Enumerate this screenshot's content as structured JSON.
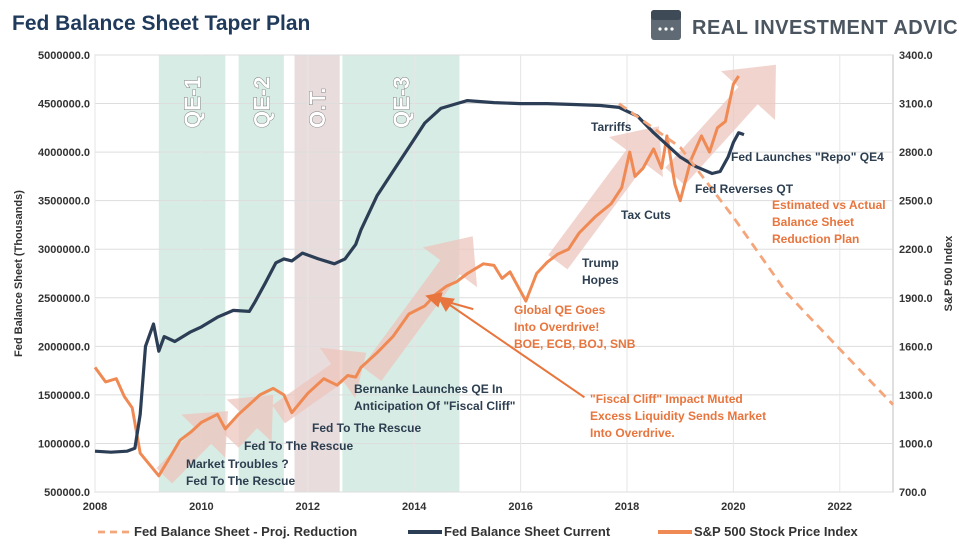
{
  "chart_data": {
    "type": "line",
    "title": "Fed Balance Sheet Taper Plan",
    "brand": "REAL INVESTMENT ADVICE",
    "x_axis": {
      "range": [
        2008,
        2023
      ],
      "ticks": [
        2008,
        2010,
        2012,
        2014,
        2016,
        2018,
        2020,
        2022
      ],
      "tick_labels": [
        "2008",
        "2010",
        "2012",
        "2014",
        "2016",
        "2018",
        "2020",
        "2022"
      ]
    },
    "y_left": {
      "label": "Fed Balance Sheet (Thousands)",
      "range": [
        500000,
        5000000
      ],
      "ticks": [
        500000,
        1000000,
        1500000,
        2000000,
        2500000,
        3000000,
        3500000,
        4000000,
        4500000,
        5000000
      ],
      "tick_labels": [
        "500000.0",
        "1000000.0",
        "1500000.0",
        "2000000.0",
        "2500000.0",
        "3000000.0",
        "3500000.0",
        "4000000.0",
        "4500000.0",
        "5000000.0"
      ]
    },
    "y_right": {
      "label": "S&P 500 Index",
      "range": [
        700,
        3400
      ],
      "ticks": [
        700,
        1000,
        1300,
        1600,
        1900,
        2200,
        2500,
        2800,
        3100,
        3400
      ],
      "tick_labels": [
        "700.0",
        "1000.0",
        "1300.0",
        "1600.0",
        "1900.0",
        "2200.0",
        "2500.0",
        "2800.0",
        "3100.0",
        "3400.0"
      ]
    },
    "grid": true,
    "legend_position": "bottom",
    "colors": {
      "fed": "#2c3e55",
      "spx": "#f08a54",
      "projection": "#f4a57a",
      "qe_band": "#d7ece4",
      "qt_band": "#e9dcdc",
      "arrow": "#ecc5bd"
    },
    "bands": [
      {
        "label": "QE-1",
        "start": 2009.2,
        "end": 2010.45,
        "kind": "qe"
      },
      {
        "label": "QE-2",
        "start": 2010.7,
        "end": 2011.55,
        "kind": "qe"
      },
      {
        "label": "O.T.",
        "start": 2011.75,
        "end": 2012.6,
        "kind": "qt"
      },
      {
        "label": "QE-3",
        "start": 2012.65,
        "end": 2014.85,
        "kind": "qe"
      }
    ],
    "series": [
      {
        "name": "Fed Balance Sheet - Proj. Reduction",
        "axis": "left",
        "style": "dashed",
        "x": [
          2017.85,
          2019.0,
          2020.0,
          2021.0,
          2022.0,
          2023.0
        ],
        "y": [
          4500000,
          4050000,
          3330000,
          2550000,
          1970000,
          1400000
        ]
      },
      {
        "name": "Fed Balance Sheet Current",
        "axis": "left",
        "style": "solid",
        "x": [
          2008.0,
          2008.3,
          2008.6,
          2008.75,
          2008.85,
          2008.95,
          2009.1,
          2009.2,
          2009.3,
          2009.5,
          2009.8,
          2010.0,
          2010.3,
          2010.6,
          2010.9,
          2011.0,
          2011.2,
          2011.4,
          2011.55,
          2011.7,
          2011.9,
          2012.2,
          2012.5,
          2012.7,
          2012.9,
          2013.0,
          2013.3,
          2013.6,
          2013.9,
          2014.2,
          2014.5,
          2014.8,
          2015.0,
          2015.5,
          2016.0,
          2016.5,
          2017.0,
          2017.5,
          2017.85,
          2018.2,
          2018.5,
          2018.8,
          2019.0,
          2019.3,
          2019.6,
          2019.75,
          2019.9,
          2020.0,
          2020.1,
          2020.2
        ],
        "y": [
          920000,
          910000,
          920000,
          950000,
          1300000,
          2000000,
          2230000,
          1950000,
          2100000,
          2050000,
          2150000,
          2200000,
          2300000,
          2370000,
          2360000,
          2450000,
          2650000,
          2860000,
          2900000,
          2880000,
          2960000,
          2900000,
          2850000,
          2900000,
          3050000,
          3200000,
          3550000,
          3800000,
          4050000,
          4300000,
          4450000,
          4500000,
          4530000,
          4510000,
          4500000,
          4500000,
          4490000,
          4480000,
          4460000,
          4370000,
          4200000,
          4050000,
          3950000,
          3850000,
          3780000,
          3800000,
          3950000,
          4100000,
          4200000,
          4180000
        ]
      },
      {
        "name": "S&P 500 Stock Price Index",
        "axis": "right",
        "style": "solid",
        "x": [
          2008.0,
          2008.2,
          2008.4,
          2008.55,
          2008.7,
          2008.85,
          2009.0,
          2009.2,
          2009.4,
          2009.6,
          2009.8,
          2010.0,
          2010.3,
          2010.45,
          2010.7,
          2010.9,
          2011.1,
          2011.35,
          2011.55,
          2011.7,
          2011.85,
          2012.0,
          2012.3,
          2012.55,
          2012.75,
          2012.9,
          2013.0,
          2013.3,
          2013.6,
          2013.9,
          2014.2,
          2014.4,
          2014.6,
          2014.8,
          2015.0,
          2015.3,
          2015.5,
          2015.65,
          2015.8,
          2016.0,
          2016.1,
          2016.3,
          2016.5,
          2016.7,
          2016.9,
          2017.1,
          2017.4,
          2017.7,
          2017.9,
          2018.05,
          2018.15,
          2018.3,
          2018.5,
          2018.65,
          2018.75,
          2018.9,
          2019.0,
          2019.2,
          2019.4,
          2019.55,
          2019.7,
          2019.85,
          2020.0,
          2020.1
        ],
        "y": [
          1470,
          1380,
          1400,
          1290,
          1220,
          940,
          880,
          800,
          910,
          1020,
          1070,
          1130,
          1180,
          1090,
          1180,
          1240,
          1300,
          1340,
          1300,
          1190,
          1250,
          1310,
          1400,
          1360,
          1420,
          1410,
          1470,
          1560,
          1660,
          1800,
          1850,
          1920,
          1970,
          2000,
          2050,
          2110,
          2100,
          2020,
          2060,
          1940,
          1880,
          2050,
          2120,
          2170,
          2200,
          2300,
          2400,
          2480,
          2580,
          2800,
          2650,
          2700,
          2820,
          2700,
          2900,
          2600,
          2500,
          2750,
          2900,
          2800,
          2950,
          2990,
          3220,
          3270
        ]
      }
    ],
    "annotations": [
      {
        "lines": [
          "QE-1"
        ],
        "kind": "band"
      },
      {
        "lines": [
          "Market Troubles ?",
          "Fed To The Rescue"
        ],
        "color": "dark"
      },
      {
        "lines": [
          "Fed To The Rescue"
        ],
        "color": "dark"
      },
      {
        "lines": [
          "Fed To The Rescue"
        ],
        "color": "dark"
      },
      {
        "lines": [
          "Bernanke Launches QE In",
          "Anticipation Of \"Fiscal Cliff\""
        ],
        "color": "dark"
      },
      {
        "lines": [
          "Trump",
          "Hopes"
        ],
        "color": "dark"
      },
      {
        "lines": [
          "Tarriffs"
        ],
        "color": "dark"
      },
      {
        "lines": [
          "Tax Cuts"
        ],
        "color": "dark"
      },
      {
        "lines": [
          "Fed Reverses QT"
        ],
        "color": "dark"
      },
      {
        "lines": [
          "Fed Launches \"Repo\" QE4"
        ],
        "color": "dark"
      },
      {
        "lines": [
          "Global QE Goes",
          "Into Overdrive!",
          "BOE, ECB, BOJ, SNB"
        ],
        "color": "orange"
      },
      {
        "lines": [
          "\"Fiscal Cliff\" Impact Muted",
          "Excess Liquidity Sends Market",
          "Into Overdrive."
        ],
        "color": "orange"
      },
      {
        "lines": [
          "Estimated vs Actual",
          "Balance Sheet",
          "Reduction Plan"
        ],
        "color": "orange"
      }
    ]
  }
}
